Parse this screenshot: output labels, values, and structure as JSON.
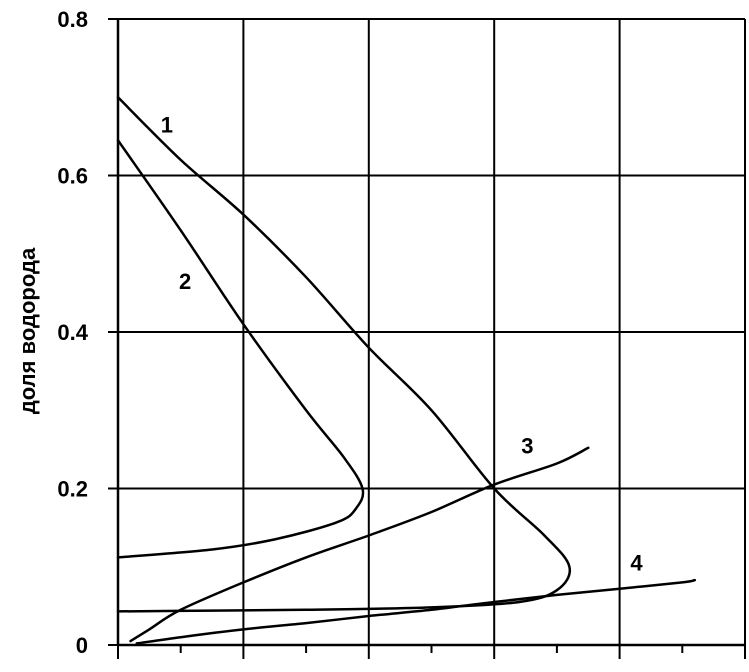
{
  "chart_data": {
    "type": "line",
    "title": "",
    "xlabel": "",
    "ylabel": "доля водорода",
    "xlim": [
      0,
      10
    ],
    "ylim": [
      0,
      0.8
    ],
    "y_ticks": [
      {
        "value": 0,
        "label": "0"
      },
      {
        "value": 0.2,
        "label": "0.2"
      },
      {
        "value": 0.4,
        "label": "0.4"
      },
      {
        "value": 0.6,
        "label": "0.6"
      },
      {
        "value": 0.8,
        "label": "0.8"
      }
    ],
    "x_major_ticks": [
      0,
      2,
      4,
      6,
      8,
      10
    ],
    "x_minor_ticks": [
      1,
      3,
      5,
      7,
      9
    ],
    "x_tick_labels_shown": false,
    "grid": true,
    "colors": {
      "line": "#000000",
      "grid": "#000000",
      "background": "#ffffff"
    },
    "series": [
      {
        "label": "1",
        "points": [
          [
            0,
            0.7
          ],
          [
            1,
            0.62
          ],
          [
            2,
            0.55
          ],
          [
            3,
            0.47
          ],
          [
            4,
            0.38
          ],
          [
            5,
            0.3
          ],
          [
            6,
            0.2
          ],
          [
            6.8,
            0.14
          ],
          [
            7.2,
            0.1
          ],
          [
            7.0,
            0.07
          ],
          [
            6.4,
            0.055
          ],
          [
            5.0,
            0.048
          ],
          [
            3.0,
            0.045
          ],
          [
            1.5,
            0.044
          ],
          [
            0,
            0.043
          ]
        ]
      },
      {
        "label": "2",
        "points": [
          [
            0,
            0.645
          ],
          [
            1,
            0.53
          ],
          [
            2,
            0.41
          ],
          [
            3,
            0.3
          ],
          [
            3.6,
            0.24
          ],
          [
            3.9,
            0.2
          ],
          [
            3.8,
            0.175
          ],
          [
            3.5,
            0.157
          ],
          [
            2.5,
            0.135
          ],
          [
            1.5,
            0.122
          ],
          [
            0,
            0.112
          ]
        ]
      },
      {
        "label": "3",
        "points": [
          [
            0.2,
            0.005
          ],
          [
            0.5,
            0.02
          ],
          [
            1,
            0.045
          ],
          [
            2,
            0.08
          ],
          [
            3,
            0.112
          ],
          [
            4,
            0.14
          ],
          [
            5,
            0.17
          ],
          [
            6,
            0.205
          ],
          [
            7,
            0.232
          ],
          [
            7.5,
            0.252
          ]
        ]
      },
      {
        "label": "4",
        "points": [
          [
            0.3,
            0.002
          ],
          [
            1,
            0.01
          ],
          [
            2,
            0.02
          ],
          [
            3,
            0.028
          ],
          [
            4,
            0.037
          ],
          [
            5,
            0.045
          ],
          [
            6,
            0.055
          ],
          [
            7,
            0.064
          ],
          [
            8,
            0.072
          ],
          [
            9,
            0.08
          ],
          [
            9.2,
            0.083
          ]
        ]
      }
    ],
    "series_labels": [
      {
        "text": "1",
        "x": 0.78,
        "y": 0.655
      },
      {
        "text": "2",
        "x": 1.07,
        "y": 0.455
      },
      {
        "text": "3",
        "x": 6.53,
        "y": 0.245
      },
      {
        "text": "4",
        "x": 8.27,
        "y": 0.095
      }
    ]
  }
}
